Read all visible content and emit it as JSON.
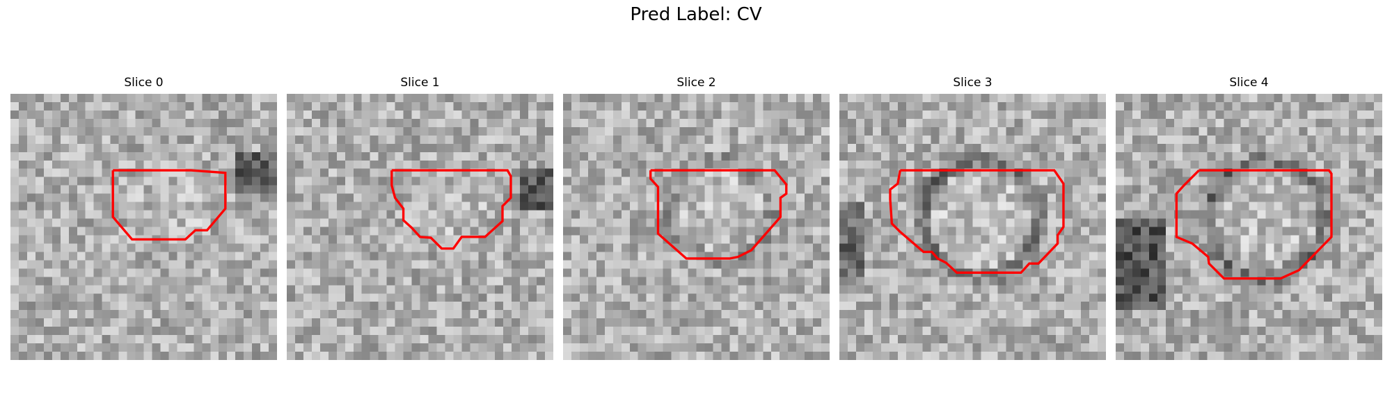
{
  "figure": {
    "title": "Pred Label: CV"
  },
  "colors": {
    "contour": "#ff0000",
    "background": "#ffffff"
  },
  "slices": [
    {
      "label": "Slice 0"
    },
    {
      "label": "Slice 1"
    },
    {
      "label": "Slice 2"
    },
    {
      "label": "Slice 3"
    },
    {
      "label": "Slice 4"
    }
  ]
}
